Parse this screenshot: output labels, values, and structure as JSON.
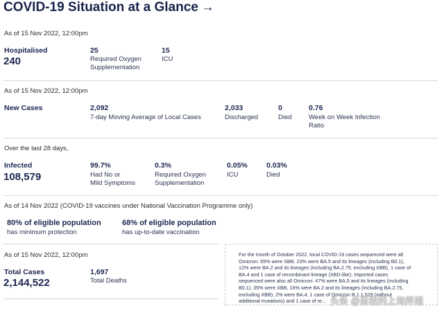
{
  "title": "COVID-19 Situation at a Glance",
  "title_arrow": "→",
  "hospital": {
    "meta": "As of 15 Nov 2022, 12:00pm",
    "label": "Hospitalised",
    "total": "240",
    "oxygen_value": "25",
    "oxygen_label_1": "Required Oxygen",
    "oxygen_label_2": "Supplementation",
    "icu_value": "15",
    "icu_label": "ICU"
  },
  "new_cases": {
    "meta": "As of 15 Nov 2022, 12:00pm",
    "label": "New Cases",
    "avg_value": "2,092",
    "avg_label": "7-day Moving Average of Local Cases",
    "discharged_value": "2,033",
    "discharged_label": "Discharged",
    "died_value": "0",
    "died_label": "Died",
    "ratio_value": "0.76",
    "ratio_label_1": "Week on Week Infection",
    "ratio_label_2": "Ratio"
  },
  "infected": {
    "meta": "Over the last 28 days,",
    "label": "Infected",
    "total": "108,579",
    "mild_value": "99.7%",
    "mild_label_1": "Had No or",
    "mild_label_2": "Mild Symptoms",
    "oxygen_value": "0.3%",
    "oxygen_label_1": "Required Oxygen",
    "oxygen_label_2": "Supplementation",
    "icu_value": "0.05%",
    "icu_label": "ICU",
    "died_value": "0.03%",
    "died_label": "Died"
  },
  "vaccination": {
    "meta": "As of 14 Nov 2022 (COVID-19 vaccines under National Vaccination Programme only)",
    "min_value": "80% of eligible population",
    "min_label": "has minimum protection",
    "uptodate_value": "68% of eligible population",
    "uptodate_label": "has up-to-date vaccination"
  },
  "totals": {
    "meta": "As of 15 Nov 2022, 12:00pm",
    "cases_label": "Total Cases",
    "cases_value": "2,144,522",
    "deaths_value": "1,697",
    "deaths_label": "Total Deaths"
  },
  "note": {
    "lines": [
      "For the month of October 2022, local COVID-19 cases sequenced were all",
      "Omicron: 65% were XBB, 23% were BA.5 and its lineages (including B0.1),",
      "12% were BA.2 and its lineages (including BA.2.75, excluding XBB), 1 case of",
      "BA.4 and 1 case of recombinant lineage (XBD-like). Imported cases",
      "sequenced were also all Omicron: 47% were BA.5 and its lineages (including",
      "B0.1), 35% were XBB, 16% were BA.2 and its lineages (including BA.2.75,",
      "excluding XBB), 2% were BA.4, 1 case of Omicron B.1.1.529 (without",
      "additional mutations) and 1 case of re..."
    ]
  },
  "watermark": "头条 @勇敢的上海弄潮"
}
